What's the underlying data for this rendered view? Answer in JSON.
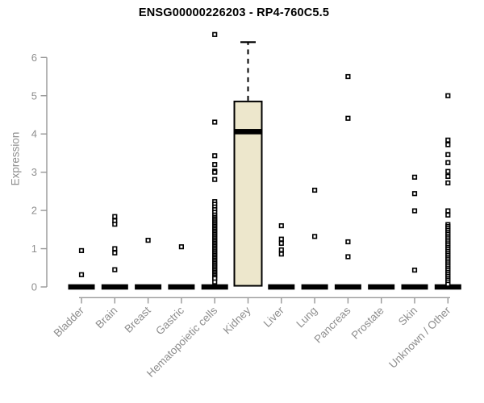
{
  "chart_data": {
    "type": "boxplot",
    "title": "ENSG00000226203 - RP4-760C5.5",
    "ylabel": "Expression",
    "xlabel": "",
    "ylim": [
      0,
      6.8
    ],
    "yticks": [
      0,
      1,
      2,
      3,
      4,
      5,
      6
    ],
    "grid": false,
    "legend": "none",
    "categories": [
      "Bladder",
      "Brain",
      "Breast",
      "Gastric",
      "Hematopoietic cells",
      "Kidney",
      "Liver",
      "Lung",
      "Pancreas",
      "Prostate",
      "Skin",
      "Unknown / Other"
    ],
    "series": [
      {
        "name": "Bladder",
        "box": {
          "q1": 0,
          "median": 0,
          "q3": 0,
          "whisker_low": 0,
          "whisker_high": 0
        },
        "points": [
          0.95,
          0.32
        ]
      },
      {
        "name": "Brain",
        "box": {
          "q1": 0,
          "median": 0,
          "q3": 0,
          "whisker_low": 0,
          "whisker_high": 0
        },
        "points": [
          1.84,
          1.73,
          1.64,
          1.0,
          0.89,
          0.45
        ]
      },
      {
        "name": "Breast",
        "box": {
          "q1": 0,
          "median": 0,
          "q3": 0,
          "whisker_low": 0,
          "whisker_high": 0
        },
        "points": [
          1.22
        ]
      },
      {
        "name": "Gastric",
        "box": {
          "q1": 0,
          "median": 0,
          "q3": 0,
          "whisker_low": 0,
          "whisker_high": 0
        },
        "points": [
          1.05
        ]
      },
      {
        "name": "Hematopoietic cells",
        "box": {
          "q1": 0,
          "median": 0,
          "q3": 0,
          "whisker_low": 0,
          "whisker_high": 0
        },
        "points": [
          6.6,
          4.31,
          3.43,
          3.2,
          3.03,
          3.0,
          2.81,
          2.23,
          2.16,
          2.09,
          2.02,
          1.95,
          1.88,
          1.82,
          1.78,
          1.74,
          1.7,
          1.66,
          1.62,
          1.58,
          1.54,
          1.5,
          1.46,
          1.42,
          1.38,
          1.34,
          1.3,
          1.26,
          1.22,
          1.18,
          1.14,
          1.1,
          1.06,
          1.02,
          0.98,
          0.94,
          0.9,
          0.86,
          0.82,
          0.78,
          0.74,
          0.7,
          0.66,
          0.62,
          0.58,
          0.54,
          0.5,
          0.46,
          0.42,
          0.38,
          0.34,
          0.3,
          0.26,
          0.22,
          0.13
        ]
      },
      {
        "name": "Kidney",
        "box": {
          "q1": 0.03,
          "median": 4.06,
          "q3": 4.85,
          "whisker_low": 0.03,
          "whisker_high": 6.4
        },
        "points": []
      },
      {
        "name": "Liver",
        "box": {
          "q1": 0,
          "median": 0,
          "q3": 0,
          "whisker_low": 0,
          "whisker_high": 0
        },
        "points": [
          1.6,
          1.25,
          1.14,
          0.97,
          0.86
        ]
      },
      {
        "name": "Lung",
        "box": {
          "q1": 0,
          "median": 0,
          "q3": 0,
          "whisker_low": 0,
          "whisker_high": 0
        },
        "points": [
          2.53,
          1.32
        ]
      },
      {
        "name": "Pancreas",
        "box": {
          "q1": 0,
          "median": 0,
          "q3": 0,
          "whisker_low": 0,
          "whisker_high": 0
        },
        "points": [
          5.5,
          4.41,
          1.18,
          0.79
        ]
      },
      {
        "name": "Prostate",
        "box": {
          "q1": 0,
          "median": 0,
          "q3": 0,
          "whisker_low": 0,
          "whisker_high": 0
        },
        "points": []
      },
      {
        "name": "Skin",
        "box": {
          "q1": 0,
          "median": 0,
          "q3": 0,
          "whisker_low": 0,
          "whisker_high": 0
        },
        "points": [
          2.87,
          2.44,
          1.99,
          0.44
        ]
      },
      {
        "name": "Unknown / Other",
        "box": {
          "q1": 0,
          "median": 0,
          "q3": 0,
          "whisker_low": 0,
          "whisker_high": 0
        },
        "points": [
          5.0,
          3.84,
          3.72,
          3.46,
          3.25,
          3.02,
          2.89,
          2.72,
          1.99,
          1.88,
          1.63,
          1.58,
          1.53,
          1.48,
          1.43,
          1.38,
          1.33,
          1.28,
          1.23,
          1.18,
          1.13,
          1.08,
          1.03,
          0.98,
          0.93,
          0.88,
          0.83,
          0.78,
          0.73,
          0.68,
          0.63,
          0.58,
          0.53,
          0.48,
          0.43,
          0.38,
          0.33,
          0.28,
          0.23,
          0.18,
          0.13,
          0.07
        ]
      }
    ],
    "colors": {
      "box_fill": "#EDE7CC",
      "box_stroke": "#000000",
      "median": "#000000",
      "point_stroke": "#000000",
      "point_fill": "#ffffff",
      "axis": "#979797",
      "tick_text": "#8e8e8e",
      "title": "#000000",
      "background": "#ffffff"
    }
  }
}
